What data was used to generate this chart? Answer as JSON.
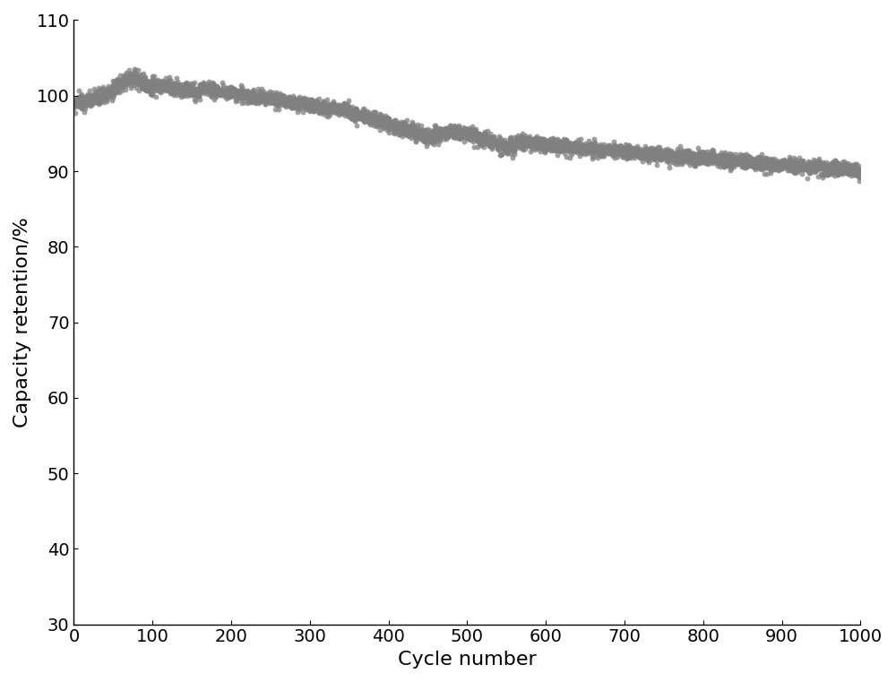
{
  "title": "",
  "xlabel": "Cycle number",
  "ylabel": "Capacity retention/%",
  "xlim": [
    0,
    1000
  ],
  "ylim": [
    30,
    110
  ],
  "xticks": [
    0,
    100,
    200,
    300,
    400,
    500,
    600,
    700,
    800,
    900,
    1000
  ],
  "yticks": [
    30,
    40,
    50,
    60,
    70,
    80,
    90,
    100,
    110
  ],
  "dot_color": "#808080",
  "dot_size": 18,
  "background_color": "#ffffff",
  "xlabel_fontsize": 16,
  "ylabel_fontsize": 16,
  "tick_fontsize": 14,
  "seed": 42,
  "figwidth": 10.0,
  "figheight": 7.61,
  "dpi": 100
}
